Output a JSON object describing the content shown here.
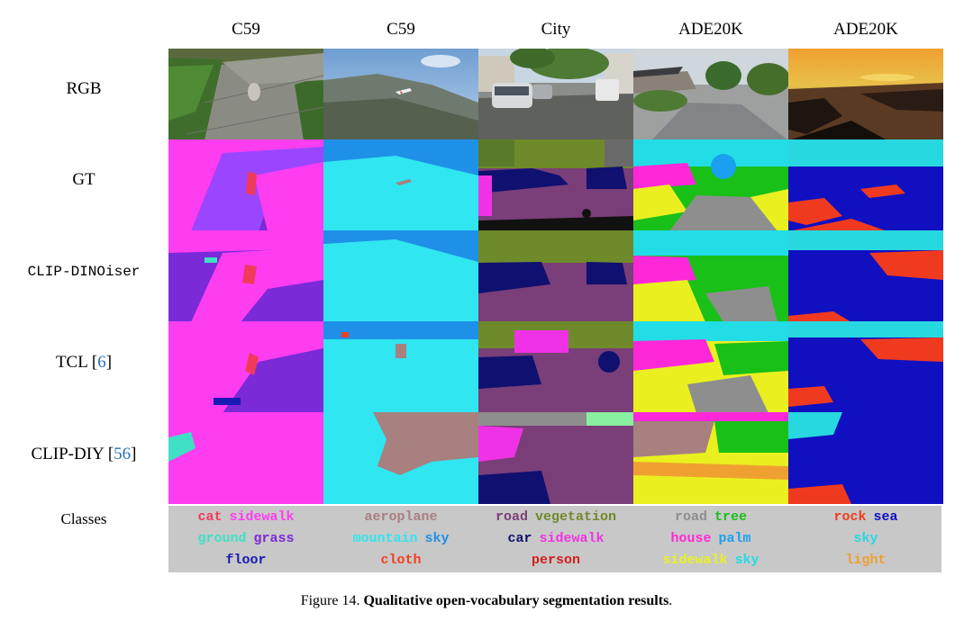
{
  "columns": [
    "C59",
    "C59",
    "City",
    "ADE20K",
    "ADE20K"
  ],
  "rows": {
    "rgb": "RGB",
    "gt": "GT",
    "dinoiser": "CLIP-DINOiser",
    "tcl": "TCL [",
    "tcl_ref": "6",
    "tcl_close": "]",
    "diy": "CLIP-DIY [",
    "diy_ref": "56",
    "diy_close": "]",
    "classes": "Classes"
  },
  "classes": [
    [
      [
        {
          "t": "cat",
          "c": "#f03a5a"
        },
        {
          "t": "sidewalk",
          "c": "#ff3df0"
        }
      ],
      [
        {
          "t": "ground",
          "c": "#3fe0c6"
        },
        {
          "t": "grass",
          "c": "#7a2ad6"
        }
      ],
      [
        {
          "t": "floor",
          "c": "#1a1ab4"
        }
      ]
    ],
    [
      [
        {
          "t": "aeroplane",
          "c": "#a88080"
        }
      ],
      [
        {
          "t": "mountain",
          "c": "#30e6f0"
        },
        {
          "t": "sky",
          "c": "#1e90e8"
        }
      ],
      [
        {
          "t": "cloth",
          "c": "#f04020"
        }
      ]
    ],
    [
      [
        {
          "t": "road",
          "c": "#7a3e78"
        },
        {
          "t": "vegetation",
          "c": "#6e8a2a"
        }
      ],
      [
        {
          "t": "car",
          "c": "#101070"
        },
        {
          "t": "sidewalk",
          "c": "#f032e6"
        }
      ],
      [
        {
          "t": "person",
          "c": "#d02020"
        }
      ]
    ],
    [
      [
        {
          "t": "road",
          "c": "#8e8e8e"
        },
        {
          "t": "tree",
          "c": "#18c018"
        }
      ],
      [
        {
          "t": "house",
          "c": "#ff28d8"
        },
        {
          "t": "palm",
          "c": "#1aa0f0"
        }
      ],
      [
        {
          "t": "sidewalk",
          "c": "#eaf020"
        },
        {
          "t": "sky",
          "c": "#22dde6"
        }
      ]
    ],
    [
      [
        {
          "t": "rock",
          "c": "#f03a20"
        },
        {
          "t": "sea",
          "c": "#1010c0"
        }
      ],
      [
        {
          "t": "sky",
          "c": "#28d8e0"
        }
      ],
      [
        {
          "t": "light",
          "c": "#f0a030"
        }
      ]
    ]
  ],
  "caption": {
    "prefix": "Figure 14. ",
    "bold": "Qualitative open-vocabulary segmentation results",
    "suffix": "."
  }
}
